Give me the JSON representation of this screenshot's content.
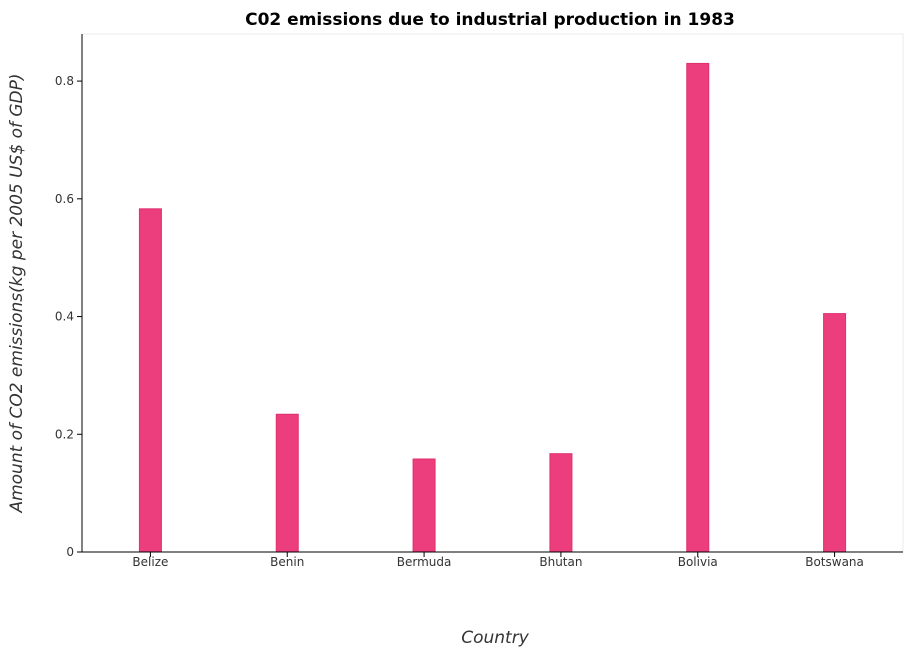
{
  "chart_data": {
    "type": "bar",
    "title": "C02 emissions due to industrial production in 1983",
    "xlabel": "Country",
    "ylabel": "Amount of CO2 emissions(kg per 2005 US$ of GDP)",
    "categories": [
      "Belize",
      "Benin",
      "Bermuda",
      "Bhutan",
      "Bolivia",
      "Botswana"
    ],
    "values": [
      0.583,
      0.234,
      0.158,
      0.167,
      0.83,
      0.405
    ],
    "ylim": [
      0,
      0.88
    ],
    "yticks": [
      0,
      0.2,
      0.4,
      0.6,
      0.8
    ],
    "ytick_labels": [
      "0",
      "0.2",
      "0.4",
      "0.6",
      "0.8"
    ],
    "grid": false,
    "bar_color": "#ec3d7c"
  }
}
